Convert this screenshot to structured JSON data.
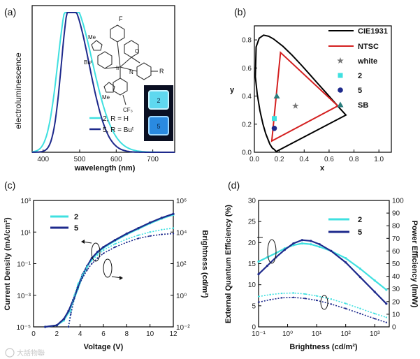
{
  "watermark": "大話物聯",
  "colors": {
    "cyan": "#3fe0e0",
    "navy": "#1e2a8c",
    "red": "#d42020",
    "teal": "#2a7d7d",
    "gray": "#777777",
    "black": "#000000"
  },
  "chart_data": [
    {
      "panel": "(a)",
      "type": "line",
      "title": "",
      "xlabel": "wavelength (nm)",
      "ylabel": "electroluminescence",
      "xlim": [
        370,
        760
      ],
      "ylim": [
        0,
        1.05
      ],
      "xticks": [
        400,
        500,
        600,
        700
      ],
      "series": [
        {
          "name": "2, R = H",
          "color": "#3fe0e0",
          "peak": 468,
          "width_left": 28,
          "width_right": 62,
          "shoulder": 0.12
        },
        {
          "name": "5, R = Buᵗ",
          "color": "#1e2a8c",
          "peak": 472,
          "width_left": 22,
          "width_right": 50,
          "shoulder": 0.08
        }
      ],
      "inset": {
        "mol_labels": {
          "f": "F",
          "me1": "Me",
          "me2": "Me",
          "o": "O",
          "n": "N",
          "r": "R",
          "bu": "Buᵗ",
          "ir": "Ir",
          "cf3": "CF₃"
        },
        "device_labels": [
          "2",
          "5"
        ]
      }
    },
    {
      "panel": "(b)",
      "type": "scatter",
      "xlabel": "x",
      "ylabel": "y",
      "xlim": [
        0,
        1.1
      ],
      "ylim": [
        0,
        0.9
      ],
      "xticks": [
        "0.0",
        "0.2",
        "0.4",
        "0.6",
        "0.8",
        "1.0"
      ],
      "yticks": [
        "0.0",
        "0.2",
        "0.4",
        "0.6",
        "0.8"
      ],
      "cie1931_locus": [
        [
          0.175,
          0.005
        ],
        [
          0.17,
          0.01
        ],
        [
          0.16,
          0.02
        ],
        [
          0.144,
          0.03
        ],
        [
          0.124,
          0.058
        ],
        [
          0.091,
          0.133
        ],
        [
          0.069,
          0.2
        ],
        [
          0.045,
          0.295
        ],
        [
          0.023,
          0.413
        ],
        [
          0.008,
          0.538
        ],
        [
          0.014,
          0.75
        ],
        [
          0.039,
          0.812
        ],
        [
          0.074,
          0.834
        ],
        [
          0.115,
          0.826
        ],
        [
          0.155,
          0.806
        ],
        [
          0.23,
          0.754
        ],
        [
          0.302,
          0.692
        ],
        [
          0.374,
          0.624
        ],
        [
          0.444,
          0.555
        ],
        [
          0.512,
          0.487
        ],
        [
          0.575,
          0.424
        ],
        [
          0.627,
          0.372
        ],
        [
          0.665,
          0.334
        ],
        [
          0.691,
          0.308
        ],
        [
          0.735,
          0.265
        ]
      ],
      "ntsc_triangle": [
        [
          0.67,
          0.33
        ],
        [
          0.21,
          0.71
        ],
        [
          0.14,
          0.08
        ]
      ],
      "points": [
        {
          "name": "white",
          "x": 0.33,
          "y": 0.33,
          "color": "#777777",
          "marker": "star"
        },
        {
          "name": "2",
          "x": 0.16,
          "y": 0.24,
          "color": "#3fe0e0",
          "marker": "square"
        },
        {
          "name": "5",
          "x": 0.16,
          "y": 0.17,
          "color": "#1e2a8c",
          "marker": "circle"
        },
        {
          "name": "SB",
          "x": 0.18,
          "y": 0.4,
          "color": "#2a7d7d",
          "marker": "triangle"
        }
      ],
      "legend": [
        "CIE1931",
        "NTSC",
        "white",
        "2",
        "5",
        "SB"
      ],
      "legend_position": "top-right"
    },
    {
      "panel": "(c)",
      "type": "line",
      "xlabel": "Voltage (V)",
      "ylabel_left": "Current Density (mA/cm²)",
      "ylabel_right": "Brightness (cd/m²)",
      "xlim": [
        0,
        12
      ],
      "ylim_left_log10": [
        -5,
        3
      ],
      "ylim_right_log10": [
        -2,
        6
      ],
      "xticks": [
        "0",
        "2",
        "4",
        "6",
        "8",
        "10",
        "12"
      ],
      "yticks_left": [
        "10⁻⁵",
        "10⁻³",
        "10⁻¹",
        "10¹",
        "10³"
      ],
      "yticks_right": [
        "10⁻²",
        "10⁰",
        "10²",
        "10⁴",
        "10⁶"
      ],
      "legend": [
        "2",
        "5"
      ],
      "series": [
        {
          "name": "2 current",
          "color": "#3fe0e0",
          "axis": "left",
          "x": [
            1.0,
            2.0,
            2.6,
            3.0,
            3.4,
            3.8,
            4.2,
            4.6,
            5.0,
            5.5,
            6.0,
            7.0,
            8.0,
            9.0,
            10.0,
            11.0,
            12.0
          ],
          "log10_y": [
            -5,
            -4.9,
            -4.6,
            -4.1,
            -3.4,
            -2.6,
            -1.8,
            -1.2,
            -0.7,
            -0.3,
            0.0,
            0.45,
            0.85,
            1.2,
            1.55,
            1.85,
            2.1
          ]
        },
        {
          "name": "5 current",
          "color": "#1e2a8c",
          "axis": "left",
          "x": [
            1.0,
            2.0,
            2.6,
            3.0,
            3.4,
            3.8,
            4.2,
            4.6,
            5.0,
            5.5,
            6.0,
            7.0,
            8.0,
            9.0,
            10.0,
            11.0,
            12.0
          ],
          "log10_y": [
            -5,
            -4.9,
            -4.5,
            -4.0,
            -3.3,
            -2.5,
            -1.7,
            -1.15,
            -0.65,
            -0.25,
            0.05,
            0.5,
            0.9,
            1.25,
            1.6,
            1.9,
            2.15
          ]
        },
        {
          "name": "2 brightness",
          "color": "#3fe0e0",
          "axis": "right",
          "x": [
            3.0,
            3.2,
            3.5,
            3.8,
            4.2,
            4.6,
            5.0,
            5.5,
            6.0,
            7.0,
            8.0,
            9.0,
            10.0,
            11.0,
            12.0
          ],
          "log10_y": [
            -2,
            -1,
            0,
            0.7,
            1.3,
            1.8,
            2.2,
            2.55,
            2.85,
            3.25,
            3.55,
            3.8,
            4.0,
            4.15,
            4.25
          ]
        },
        {
          "name": "5 brightness",
          "color": "#1e2a8c",
          "axis": "right",
          "x": [
            3.0,
            3.2,
            3.5,
            3.8,
            4.2,
            4.6,
            5.0,
            5.5,
            6.0,
            7.0,
            8.0,
            9.0,
            10.0,
            11.0,
            12.0
          ],
          "log10_y": [
            -2,
            -1.2,
            -0.2,
            0.5,
            1.1,
            1.6,
            2.0,
            2.35,
            2.65,
            3.05,
            3.35,
            3.6,
            3.75,
            3.85,
            3.9
          ]
        }
      ]
    },
    {
      "panel": "(d)",
      "type": "line",
      "xlabel": "Brightness (cd/m²)",
      "ylabel_left": "External Quantum Efficiency (%)",
      "ylabel_right": "Power Efficiency (lm/W)",
      "xlim_log10": [
        -1,
        3.5
      ],
      "ylim_left": [
        0,
        30
      ],
      "ylim_right": [
        0,
        100
      ],
      "xticks": [
        "10⁻¹",
        "10⁰",
        "10¹",
        "10²",
        "10³"
      ],
      "yticks_left": [
        "0",
        "5",
        "10",
        "15",
        "20",
        "25",
        "30"
      ],
      "yticks_right": [
        "0",
        "10",
        "20",
        "30",
        "40",
        "50",
        "60",
        "70",
        "80",
        "90",
        "100"
      ],
      "legend": [
        "2",
        "5"
      ],
      "series": [
        {
          "name": "2 EQE",
          "color": "#3fe0e0",
          "axis": "left",
          "log10_x": [
            -1,
            -0.7,
            -0.4,
            -0.1,
            0.2,
            0.5,
            0.8,
            1.1,
            1.5,
            2.0,
            2.5,
            3.0,
            3.4
          ],
          "y": [
            15.5,
            16.5,
            17.5,
            18.6,
            19.4,
            19.8,
            19.6,
            19.0,
            18.0,
            16.3,
            13.8,
            11.0,
            8.8
          ]
        },
        {
          "name": "5 EQE",
          "color": "#1e2a8c",
          "axis": "left",
          "log10_x": [
            -1,
            -0.7,
            -0.4,
            -0.1,
            0.2,
            0.5,
            0.8,
            1.1,
            1.5,
            2.0,
            2.5,
            3.0,
            3.4
          ],
          "y": [
            12.5,
            14.5,
            16.5,
            18.3,
            19.8,
            20.6,
            20.4,
            19.6,
            18.0,
            15.3,
            11.8,
            8.3,
            5.5
          ]
        },
        {
          "name": "2 PE",
          "color": "#3fe0e0",
          "axis": "right",
          "log10_x": [
            -1,
            -0.6,
            -0.2,
            0.2,
            0.6,
            1.0,
            1.5,
            2.0,
            2.5,
            3.0,
            3.4
          ],
          "y": [
            24,
            25.5,
            26.5,
            26.8,
            26.0,
            24.5,
            22.0,
            18.5,
            14.5,
            10.5,
            7.5
          ]
        },
        {
          "name": "5 PE",
          "color": "#1e2a8c",
          "axis": "right",
          "log10_x": [
            -1,
            -0.6,
            -0.2,
            0.2,
            0.6,
            1.0,
            1.5,
            2.0,
            2.5,
            3.0,
            3.4
          ],
          "y": [
            19.5,
            21.5,
            23.0,
            23.3,
            22.5,
            21.0,
            18.0,
            14.5,
            10.5,
            6.5,
            3.5
          ]
        }
      ]
    }
  ]
}
